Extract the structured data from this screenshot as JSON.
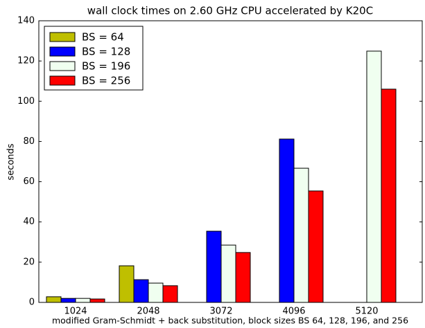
{
  "chart_data": {
    "type": "bar",
    "title": "wall clock times on 2.60 GHz CPU accelerated by K20C",
    "xlabel": "modified Gram-Schmidt + back substitution, block sizes BS 64, 128, 196, and 256",
    "ylabel": "seconds",
    "categories": [
      "1024",
      "2048",
      "3072",
      "4096",
      "5120"
    ],
    "series": [
      {
        "name": "BS = 64",
        "color": "#bfbf00",
        "values": [
          2.8,
          18.2,
          null,
          null,
          null
        ]
      },
      {
        "name": "BS = 128",
        "color": "#0000ff",
        "values": [
          2.0,
          11.3,
          35.4,
          81.2,
          null
        ]
      },
      {
        "name": "BS = 196",
        "color": "#f0fff0",
        "values": [
          2.0,
          9.6,
          28.5,
          66.7,
          124.9
        ]
      },
      {
        "name": "BS = 256",
        "color": "#ff0000",
        "values": [
          1.7,
          8.3,
          24.8,
          55.4,
          106.0
        ]
      }
    ],
    "ylim": [
      0,
      140
    ],
    "yticks": [
      0,
      20,
      40,
      60,
      80,
      100,
      120,
      140
    ],
    "legend": "upper left"
  }
}
